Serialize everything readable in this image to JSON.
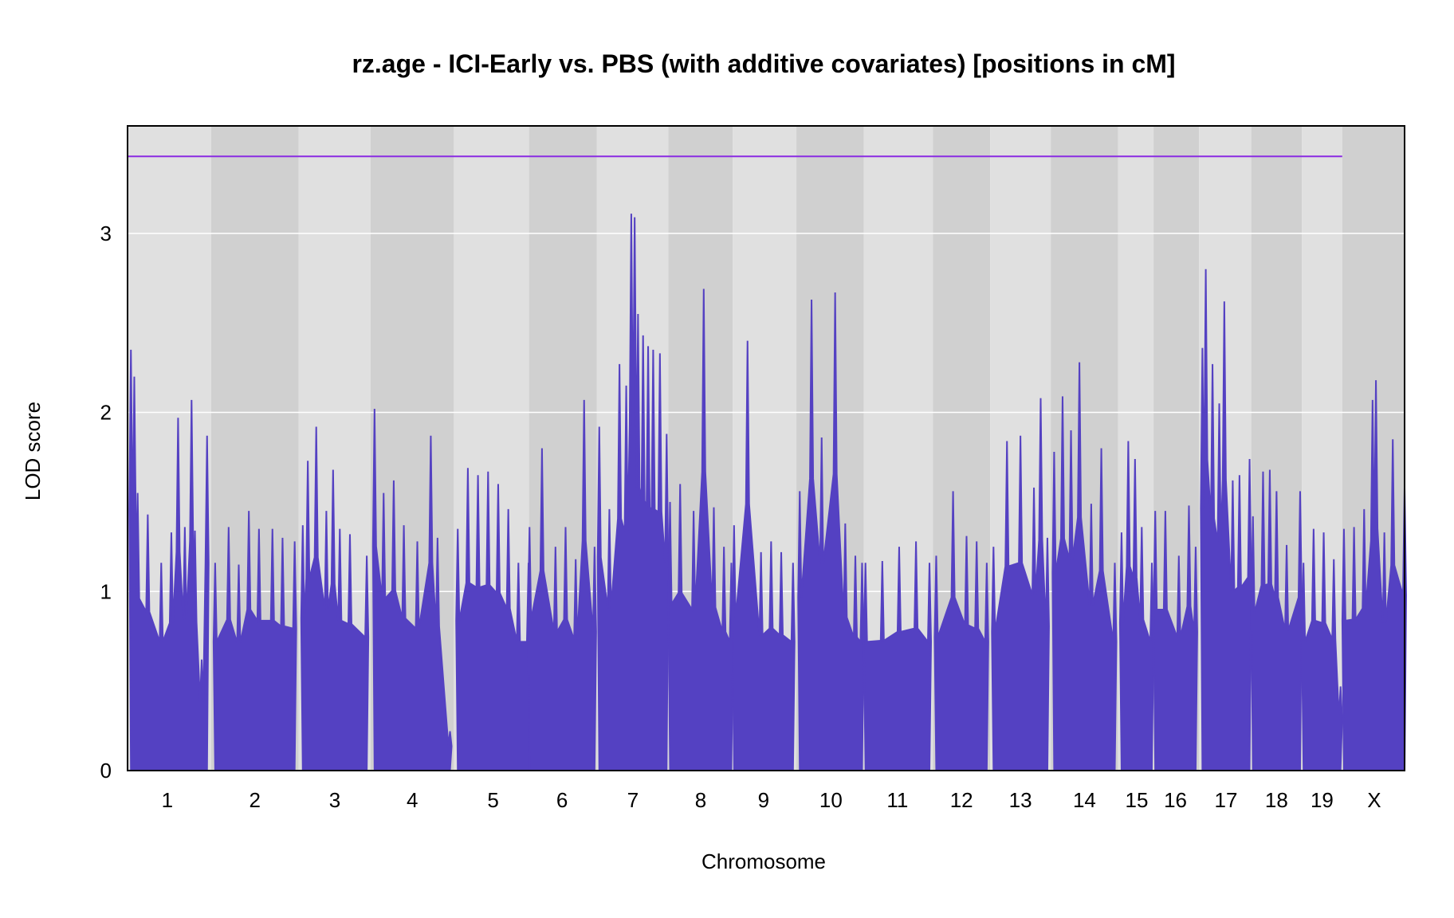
{
  "chart_data": {
    "type": "bar",
    "title": "rz.age - ICI-Early vs. PBS (with additive covariates) [positions in cM]",
    "xlabel": "Chromosome",
    "ylabel": "LOD score",
    "ylim": [
      0,
      3.6
    ],
    "yticks": [
      0,
      1,
      2,
      3
    ],
    "threshold": 3.43,
    "colors": {
      "lod": "#5441C2",
      "threshold": "#8A2BE2",
      "band_light": "#E0E0E0",
      "band_dark": "#D0D0D0",
      "grid": "#FFFFFF"
    },
    "categories": [
      "1",
      "2",
      "3",
      "4",
      "5",
      "6",
      "7",
      "8",
      "9",
      "10",
      "11",
      "12",
      "13",
      "14",
      "15",
      "16",
      "17",
      "18",
      "19",
      "X"
    ],
    "chromosome_ranges": [
      [
        0.0,
        2.36
      ],
      [
        2.6,
        4.96
      ],
      [
        5.2,
        7.1
      ],
      [
        7.33,
        9.57
      ],
      [
        9.8,
        11.9
      ],
      [
        11.93,
        13.86
      ],
      [
        14.0,
        16.0
      ],
      [
        16.1,
        17.92
      ],
      [
        18.0,
        19.75
      ],
      [
        19.95,
        21.8
      ],
      [
        21.9,
        23.8
      ],
      [
        24.0,
        25.5
      ],
      [
        25.7,
        27.3
      ],
      [
        27.5,
        29.3
      ],
      [
        29.5,
        30.4
      ],
      [
        30.5,
        31.7
      ],
      [
        31.9,
        33.3
      ],
      [
        33.4,
        34.8
      ],
      [
        34.9,
        36.0
      ],
      [
        36.1,
        37.9
      ]
    ],
    "series": [
      {
        "values": [
          [
            [
              0.1,
              2.35
            ],
            [
              0.2,
              2.2
            ],
            [
              0.3,
              1.55
            ],
            [
              0.6,
              1.43
            ],
            [
              1.0,
              1.16
            ],
            [
              1.3,
              1.33
            ],
            [
              1.5,
              1.97
            ],
            [
              1.7,
              1.36
            ],
            [
              1.9,
              2.07
            ],
            [
              2.0,
              1.34
            ],
            [
              2.2,
              0.62
            ],
            [
              2.36,
              1.87
            ]
          ],
          [
            [
              2.6,
              1.16
            ],
            [
              3.0,
              1.36
            ],
            [
              3.3,
              1.15
            ],
            [
              3.6,
              1.45
            ],
            [
              3.9,
              1.35
            ],
            [
              4.3,
              1.35
            ],
            [
              4.6,
              1.3
            ],
            [
              4.96,
              1.28
            ]
          ],
          [
            [
              5.2,
              1.37
            ],
            [
              5.35,
              1.73
            ],
            [
              5.6,
              1.92
            ],
            [
              5.9,
              1.45
            ],
            [
              6.1,
              1.68
            ],
            [
              6.3,
              1.35
            ],
            [
              6.6,
              1.32
            ],
            [
              7.1,
              1.2
            ]
          ],
          [
            [
              7.33,
              2.02
            ],
            [
              7.6,
              1.55
            ],
            [
              7.9,
              1.62
            ],
            [
              8.2,
              1.37
            ],
            [
              8.6,
              1.28
            ],
            [
              9.0,
              1.87
            ],
            [
              9.2,
              1.3
            ],
            [
              9.57,
              0.22
            ]
          ],
          [
            [
              9.8,
              1.35
            ],
            [
              10.1,
              1.69
            ],
            [
              10.4,
              1.65
            ],
            [
              10.7,
              1.67
            ],
            [
              11.0,
              1.6
            ],
            [
              11.3,
              1.46
            ],
            [
              11.6,
              1.16
            ],
            [
              11.9,
              1.16
            ]
          ],
          [
            [
              11.93,
              1.36
            ],
            [
              12.3,
              1.8
            ],
            [
              12.7,
              1.25
            ],
            [
              13.0,
              1.36
            ],
            [
              13.3,
              1.18
            ],
            [
              13.55,
              2.07
            ],
            [
              13.86,
              1.25
            ]
          ],
          [
            [
              14.0,
              1.92
            ],
            [
              14.3,
              1.46
            ],
            [
              14.6,
              2.27
            ],
            [
              14.8,
              2.15
            ],
            [
              14.95,
              3.11
            ],
            [
              15.05,
              3.09
            ],
            [
              15.15,
              2.55
            ],
            [
              15.3,
              2.43
            ],
            [
              15.45,
              2.37
            ],
            [
              15.6,
              2.35
            ],
            [
              15.8,
              2.33
            ],
            [
              16.0,
              1.88
            ]
          ],
          [
            [
              16.1,
              1.5
            ],
            [
              16.4,
              1.6
            ],
            [
              16.8,
              1.45
            ],
            [
              17.1,
              2.69
            ],
            [
              17.4,
              1.47
            ],
            [
              17.7,
              1.25
            ],
            [
              17.92,
              1.16
            ]
          ],
          [
            [
              18.0,
              1.37
            ],
            [
              18.4,
              2.4
            ],
            [
              18.8,
              1.22
            ],
            [
              19.1,
              1.28
            ],
            [
              19.4,
              1.22
            ],
            [
              19.75,
              1.16
            ]
          ],
          [
            [
              19.95,
              1.56
            ],
            [
              20.3,
              2.63
            ],
            [
              20.6,
              1.86
            ],
            [
              21.0,
              2.67
            ],
            [
              21.3,
              1.38
            ],
            [
              21.6,
              1.2
            ],
            [
              21.8,
              1.16
            ]
          ],
          [
            [
              21.9,
              1.16
            ],
            [
              22.4,
              1.17
            ],
            [
              22.9,
              1.25
            ],
            [
              23.4,
              1.28
            ],
            [
              23.8,
              1.16
            ]
          ],
          [
            [
              24.0,
              1.2
            ],
            [
              24.5,
              1.56
            ],
            [
              24.9,
              1.31
            ],
            [
              25.2,
              1.28
            ],
            [
              25.5,
              1.16
            ]
          ],
          [
            [
              25.7,
              1.25
            ],
            [
              26.1,
              1.84
            ],
            [
              26.5,
              1.87
            ],
            [
              26.9,
              1.58
            ],
            [
              27.1,
              2.08
            ],
            [
              27.3,
              1.3
            ]
          ],
          [
            [
              27.5,
              1.78
            ],
            [
              27.75,
              2.09
            ],
            [
              28.0,
              1.9
            ],
            [
              28.25,
              2.28
            ],
            [
              28.6,
              1.49
            ],
            [
              28.9,
              1.8
            ],
            [
              29.3,
              1.16
            ]
          ],
          [
            [
              29.5,
              1.33
            ],
            [
              29.7,
              1.84
            ],
            [
              29.9,
              1.74
            ],
            [
              30.1,
              1.36
            ],
            [
              30.4,
              1.16
            ]
          ],
          [
            [
              30.5,
              1.45
            ],
            [
              30.8,
              1.45
            ],
            [
              31.2,
              1.2
            ],
            [
              31.5,
              1.48
            ],
            [
              31.7,
              1.25
            ]
          ],
          [
            [
              31.9,
              2.36
            ],
            [
              32.0,
              2.8
            ],
            [
              32.2,
              2.27
            ],
            [
              32.4,
              2.05
            ],
            [
              32.55,
              2.62
            ],
            [
              32.8,
              1.62
            ],
            [
              33.0,
              1.65
            ],
            [
              33.3,
              1.74
            ]
          ],
          [
            [
              33.4,
              1.42
            ],
            [
              33.7,
              1.67
            ],
            [
              33.9,
              1.68
            ],
            [
              34.1,
              1.56
            ],
            [
              34.4,
              1.26
            ],
            [
              34.8,
              1.56
            ]
          ],
          [
            [
              34.9,
              1.16
            ],
            [
              35.2,
              1.35
            ],
            [
              35.5,
              1.33
            ],
            [
              35.8,
              1.18
            ],
            [
              36.0,
              0.47
            ]
          ],
          [
            [
              36.1,
              1.35
            ],
            [
              36.4,
              1.36
            ],
            [
              36.7,
              1.46
            ],
            [
              36.95,
              2.07
            ],
            [
              37.05,
              2.18
            ],
            [
              37.3,
              1.33
            ],
            [
              37.55,
              1.85
            ],
            [
              37.9,
              1.58
            ]
          ]
        ]
      }
    ]
  }
}
